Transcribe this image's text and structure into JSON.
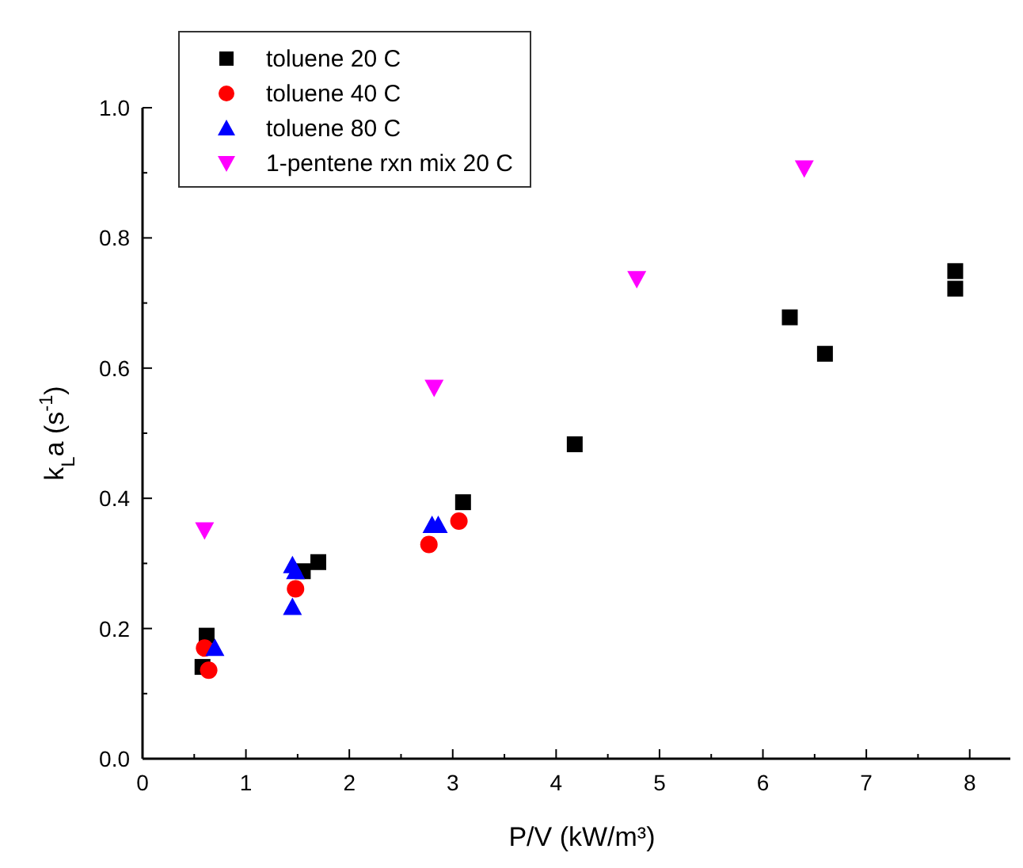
{
  "chart_data": {
    "type": "scatter",
    "xlabel": "P/V (kW/m³)",
    "ylabel": "k$_{L}$a (s$^{-1}$)",
    "xlim": [
      0,
      8.5
    ],
    "ylim": [
      0,
      1.0
    ],
    "xticks": [
      0,
      {
        "value": 0.5,
        "label": null
      },
      1,
      {
        "value": 1.5,
        "label": null
      },
      2,
      {
        "value": 2.5,
        "label": null
      },
      3,
      {
        "value": 3.5,
        "label": null
      },
      4,
      {
        "value": 4.5,
        "label": null
      },
      5,
      {
        "value": 5.5,
        "label": null
      },
      6,
      {
        "value": 6.5,
        "label": null
      },
      7,
      {
        "value": 7.5,
        "label": null
      },
      8
    ],
    "yticks": [
      {
        "value": 0,
        "label": "0.0"
      },
      {
        "value": 0.1,
        "label": null
      },
      0.2,
      {
        "value": 0.3,
        "label": null
      },
      0.4,
      {
        "value": 0.5,
        "label": null
      },
      0.6,
      {
        "value": 0.7,
        "label": null
      },
      0.8,
      {
        "value": 0.9,
        "label": null
      },
      {
        "value": 1.0,
        "label": "1.0"
      }
    ],
    "grid": false,
    "legend": "top left",
    "series": [
      {
        "name": "toluene 20 C",
        "color": "#000000",
        "marker": "square",
        "x": [
          0.62,
          0.58,
          1.55,
          1.7,
          3.1,
          4.18,
          6.26,
          6.6,
          7.86,
          7.86
        ],
        "values": [
          0.189,
          0.141,
          0.288,
          0.302,
          0.394,
          0.483,
          0.678,
          0.622,
          0.749,
          0.722
        ]
      },
      {
        "name": "toluene 40 C",
        "color": "#ff0000",
        "marker": "circle",
        "x": [
          0.6,
          0.64,
          1.48,
          2.77,
          3.06
        ],
        "values": [
          0.17,
          0.136,
          0.261,
          0.329,
          0.365
        ]
      },
      {
        "name": "toluene 80 C",
        "color": "#0000ff",
        "marker": "triangle",
        "x": [
          0.7,
          1.45,
          1.48,
          1.45,
          2.8,
          2.86
        ],
        "values": [
          0.17,
          0.297,
          0.288,
          0.233,
          0.359,
          0.359
        ]
      },
      {
        "name": "1-pentene rxn mix 20 C",
        "color": "#ff00ff",
        "marker": "triangle-down",
        "x": [
          0.6,
          2.82,
          4.78,
          6.4
        ],
        "values": [
          0.351,
          0.57,
          0.737,
          0.907
        ]
      }
    ]
  }
}
